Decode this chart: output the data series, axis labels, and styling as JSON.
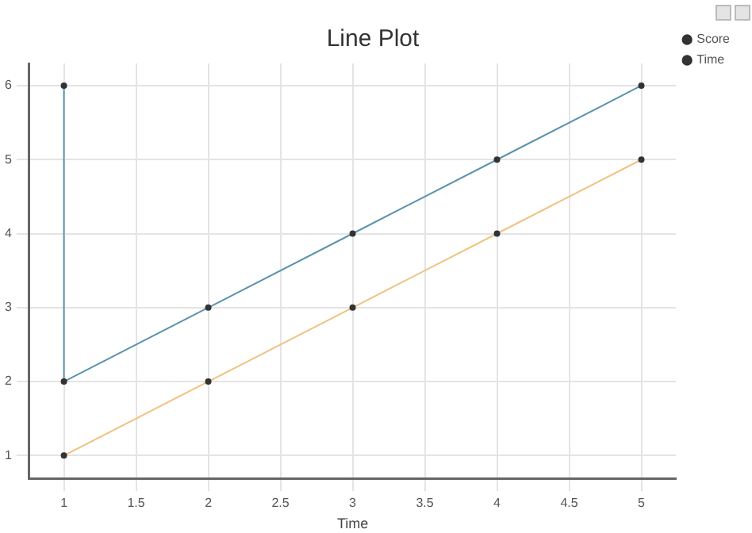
{
  "chart_data": {
    "type": "line",
    "title": "Line Plot",
    "xlabel": "Time",
    "xlim": [
      0.76,
      5.24
    ],
    "xticks": [
      1,
      1.5,
      2,
      2.5,
      3,
      3.5,
      4,
      4.5,
      5
    ],
    "ylim": [
      0.69,
      6.3
    ],
    "yticks": [
      1,
      2,
      3,
      4,
      5,
      6
    ],
    "series": [
      {
        "name": "Score",
        "color": "#5b93ad",
        "x": [
          1,
          1,
          2,
          3,
          4,
          5
        ],
        "values": [
          6,
          2,
          3,
          4,
          5,
          6
        ]
      },
      {
        "name": "Time",
        "color": "#f0c27f",
        "x": [
          1,
          2,
          3,
          4,
          5
        ],
        "values": [
          1,
          2,
          3,
          4,
          5
        ]
      }
    ],
    "grid": true,
    "legend": "top right",
    "marker": "circle",
    "line_style": "solid"
  }
}
